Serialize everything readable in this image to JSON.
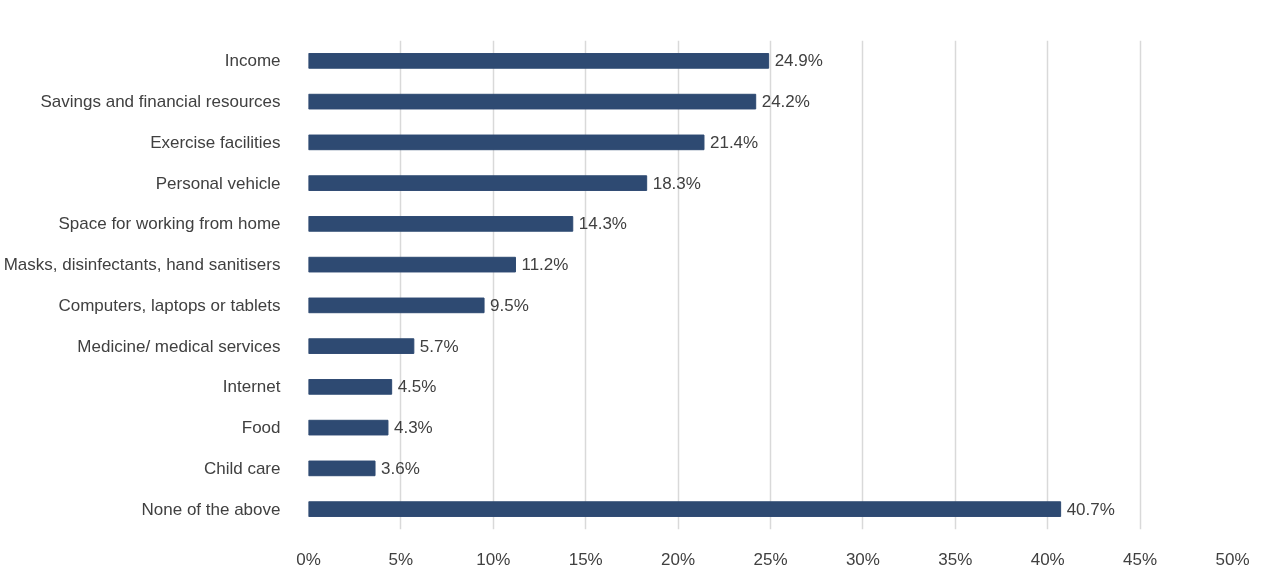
{
  "chart_data": {
    "type": "bar",
    "orientation": "horizontal",
    "categories": [
      "Income",
      "Savings and financial resources",
      "Exercise facilities",
      "Personal vehicle",
      "Space for working from home",
      "Masks, disinfectants, hand sanitisers",
      "Computers, laptops or tablets",
      "Medicine/ medical services",
      "Internet",
      "Food",
      "Child care",
      "None of the above"
    ],
    "values": [
      24.9,
      24.2,
      21.4,
      18.3,
      14.3,
      11.2,
      9.5,
      5.7,
      4.5,
      4.3,
      3.6,
      40.7
    ],
    "value_labels": [
      "24.9%",
      "24.2%",
      "21.4%",
      "18.3%",
      "14.3%",
      "11.2%",
      "9.5%",
      "5.7%",
      "4.5%",
      "4.3%",
      "3.6%",
      "40.7%"
    ],
    "color": "#2e4a72",
    "xlim": [
      0,
      50
    ],
    "xticks": [
      {
        "value": 0,
        "label": "0%"
      },
      {
        "value": 5,
        "label": "5%"
      },
      {
        "value": 10,
        "label": "10%"
      },
      {
        "value": 15,
        "label": "15%"
      },
      {
        "value": 20,
        "label": "20%"
      },
      {
        "value": 25,
        "label": "25%"
      },
      {
        "value": 30,
        "label": "30%"
      },
      {
        "value": 35,
        "label": "35%"
      },
      {
        "value": 40,
        "label": "40%"
      },
      {
        "value": 45,
        "label": "45%"
      },
      {
        "value": 50,
        "label": "50%"
      }
    ],
    "grid": "x"
  }
}
